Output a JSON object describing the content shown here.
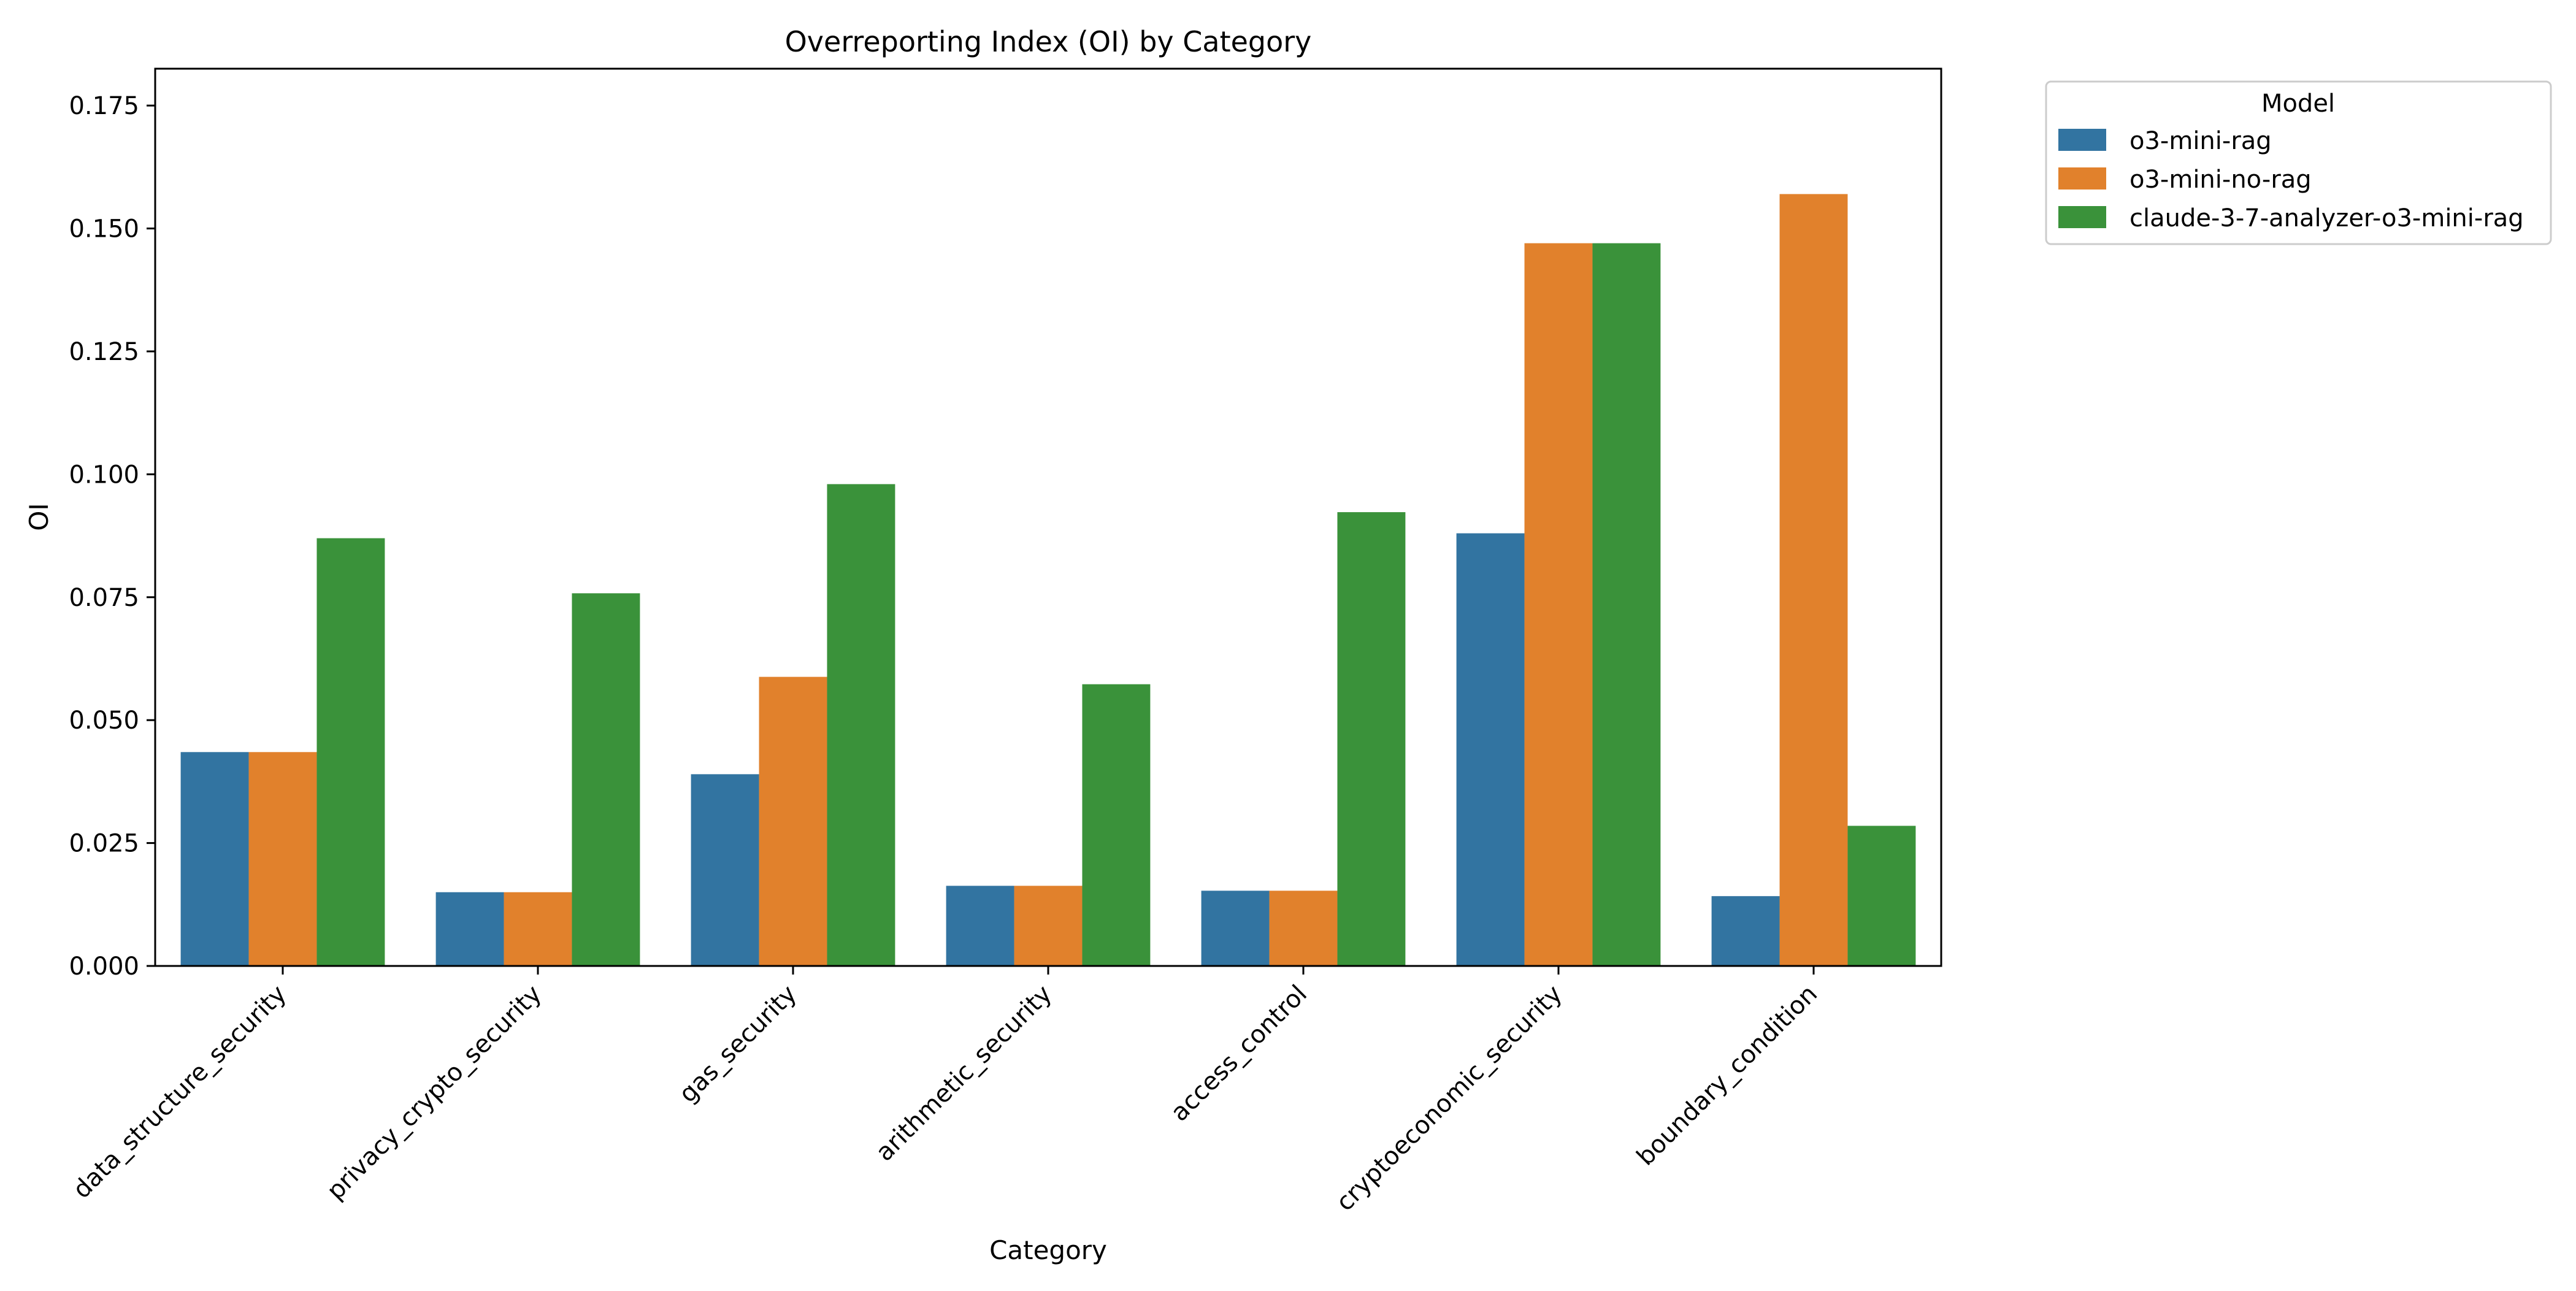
{
  "chart_data": {
    "type": "bar",
    "title": "Overreporting Index (OI) by Category",
    "xlabel": "Category",
    "ylabel": "OI",
    "ylim": [
      0,
      0.1825
    ],
    "yticks": [
      "0.000",
      "0.025",
      "0.050",
      "0.075",
      "0.100",
      "0.125",
      "0.150",
      "0.175"
    ],
    "categories": [
      "data_structure_security",
      "privacy_crypto_security",
      "gas_security",
      "arithmetic_security",
      "access_control",
      "cryptoeconomic_security",
      "boundary_condition"
    ],
    "legend": {
      "title": "Model",
      "placement": "outside-top-right"
    },
    "grid": false,
    "series": [
      {
        "name": "o3-mini-rag",
        "color": "#3274a1",
        "values": [
          0.0435,
          0.015,
          0.039,
          0.0163,
          0.0153,
          0.088,
          0.0142
        ]
      },
      {
        "name": "o3-mini-no-rag",
        "color": "#e1812c",
        "values": [
          0.0435,
          0.015,
          0.0588,
          0.0163,
          0.0153,
          0.147,
          0.157
        ]
      },
      {
        "name": "claude-3-7-analyzer-o3-mini-rag",
        "color": "#3a923a",
        "values": [
          0.087,
          0.0758,
          0.098,
          0.0573,
          0.0923,
          0.147,
          0.0285
        ]
      }
    ]
  }
}
